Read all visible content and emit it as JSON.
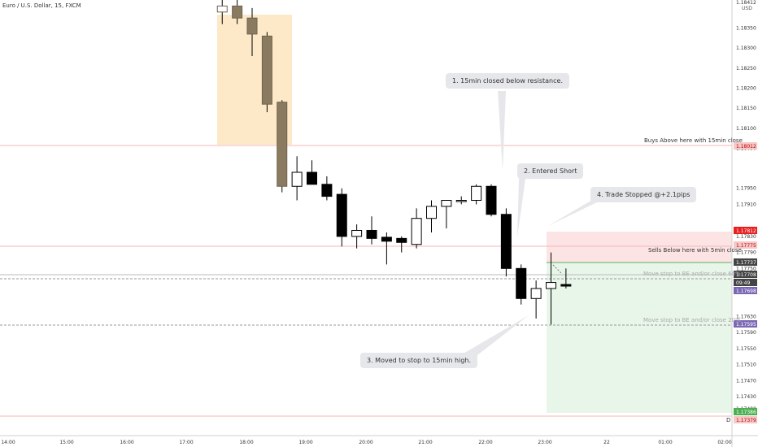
{
  "header": {
    "symbol_title": "Euro / U.S. Dollar, 15, FXCM",
    "currency": "USD",
    "d_label": "D"
  },
  "annotations": {
    "a1": "1. 15min closed below resistance.",
    "a2": "2. Entered Short",
    "a3": "3. Moved to stop to 15min high.",
    "a4": "4. Trade Stopped @+2.1pips",
    "buys_above": "Buys Above here with 15min close",
    "sells_below": "Sells Below here with 5min close",
    "be60": "Move stop to BE and/or close 60%",
    "be20": "Move stop to BE and/or close 20%"
  },
  "colors": {
    "red_tag": "#e91e1e",
    "purple_tag": "#7b68b5",
    "green_tag": "#4caf50",
    "dark_tag": "#444444",
    "orange_zone": "#fde8c8",
    "red_zone": "#fce4e4",
    "green_zone": "#e8f5e9"
  },
  "chart_data": {
    "type": "candlestick",
    "title": "",
    "xlabel": "",
    "ylabel": "",
    "ylim": [
      1.17345,
      1.1842
    ],
    "x_ticks": [
      "14:00",
      "15:00",
      "16:00",
      "17:00",
      "18:00",
      "19:00",
      "20:00",
      "21:00",
      "22:00",
      "23:00",
      "22",
      "01:00",
      "02:00"
    ],
    "y_ticks": [
      "1.18350",
      "1.18300",
      "1.18250",
      "1.18200",
      "1.18150",
      "1.18100",
      "1.18050",
      "1.17950",
      "1.17910",
      "1.17830",
      "1.17790",
      "1.17750",
      "1.17630",
      "1.17590",
      "1.17550",
      "1.17510",
      "1.17470",
      "1.17430",
      "1.17400"
    ],
    "price_tags": [
      {
        "label": "1.18412",
        "kind": "plain"
      },
      {
        "label": "1.18012",
        "kind": "red_light"
      },
      {
        "label": "1.17812",
        "kind": "red"
      },
      {
        "label": "1.17775",
        "kind": "red_light"
      },
      {
        "label": "1.17737",
        "kind": "dark"
      },
      {
        "label": "1.17708",
        "kind": "dark"
      },
      {
        "label": "09:49",
        "kind": "dark"
      },
      {
        "label": "1.17698",
        "kind": "purple"
      },
      {
        "label": "1.17595",
        "kind": "purple"
      },
      {
        "label": "1.17386",
        "kind": "green"
      },
      {
        "label": "1.17379",
        "kind": "red_light"
      }
    ],
    "candles": [
      {
        "t": "17:30",
        "o": 1.1839,
        "h": 1.1842,
        "l": 1.1836,
        "c": 1.18405
      },
      {
        "t": "17:45",
        "o": 1.18405,
        "h": 1.1842,
        "l": 1.1836,
        "c": 1.18375
      },
      {
        "t": "18:00",
        "o": 1.18375,
        "h": 1.184,
        "l": 1.1828,
        "c": 1.18335
      },
      {
        "t": "18:15",
        "o": 1.1833,
        "h": 1.1834,
        "l": 1.1814,
        "c": 1.1816
      },
      {
        "t": "18:30",
        "o": 1.18165,
        "h": 1.1817,
        "l": 1.1794,
        "c": 1.17955
      },
      {
        "t": "18:45",
        "o": 1.17955,
        "h": 1.1803,
        "l": 1.1792,
        "c": 1.1799
      },
      {
        "t": "19:00",
        "o": 1.1799,
        "h": 1.1802,
        "l": 1.1797,
        "c": 1.1796
      },
      {
        "t": "19:15",
        "o": 1.1796,
        "h": 1.1798,
        "l": 1.1792,
        "c": 1.1793
      },
      {
        "t": "19:30",
        "o": 1.17935,
        "h": 1.1795,
        "l": 1.17805,
        "c": 1.1783
      },
      {
        "t": "19:45",
        "o": 1.1783,
        "h": 1.1786,
        "l": 1.178,
        "c": 1.17845
      },
      {
        "t": "20:00",
        "o": 1.17845,
        "h": 1.1788,
        "l": 1.1781,
        "c": 1.17825
      },
      {
        "t": "20:15",
        "o": 1.17828,
        "h": 1.1784,
        "l": 1.1776,
        "c": 1.17818
      },
      {
        "t": "20:30",
        "o": 1.17825,
        "h": 1.1783,
        "l": 1.1779,
        "c": 1.17815
      },
      {
        "t": "20:45",
        "o": 1.1781,
        "h": 1.179,
        "l": 1.178,
        "c": 1.17875
      },
      {
        "t": "21:00",
        "o": 1.17875,
        "h": 1.1792,
        "l": 1.1784,
        "c": 1.17905
      },
      {
        "t": "21:15",
        "o": 1.17905,
        "h": 1.1792,
        "l": 1.1785,
        "c": 1.1792
      },
      {
        "t": "21:30",
        "o": 1.1792,
        "h": 1.1793,
        "l": 1.1791,
        "c": 1.1792
      },
      {
        "t": "21:45",
        "o": 1.1792,
        "h": 1.1796,
        "l": 1.1791,
        "c": 1.17955
      },
      {
        "t": "22:00",
        "o": 1.17955,
        "h": 1.1796,
        "l": 1.1788,
        "c": 1.17885
      },
      {
        "t": "22:15",
        "o": 1.17885,
        "h": 1.179,
        "l": 1.1773,
        "c": 1.1775
      },
      {
        "t": "22:30",
        "o": 1.1775,
        "h": 1.1776,
        "l": 1.1766,
        "c": 1.17675
      },
      {
        "t": "22:45",
        "o": 1.17675,
        "h": 1.1772,
        "l": 1.17625,
        "c": 1.177
      },
      {
        "t": "23:00",
        "o": 1.177,
        "h": 1.1779,
        "l": 1.1761,
        "c": 1.17715
      },
      {
        "t": "23:15",
        "o": 1.1771,
        "h": 1.1775,
        "l": 1.177,
        "c": 1.17706
      }
    ]
  }
}
